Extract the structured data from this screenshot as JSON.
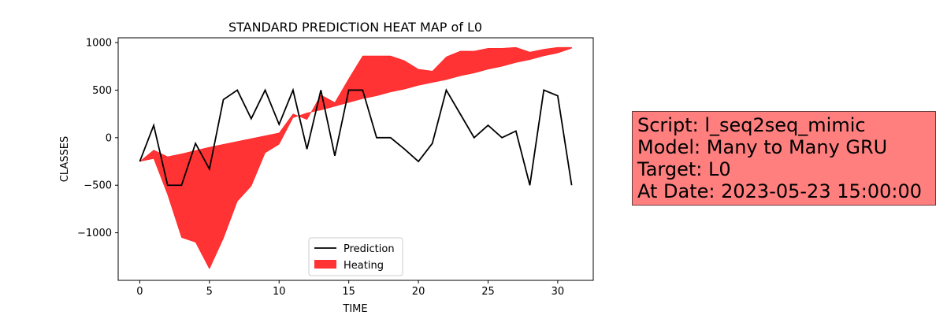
{
  "chart_data": {
    "type": "line",
    "title": "STANDARD PREDICTION HEAT MAP of L0",
    "xlabel": "TIME",
    "ylabel": "CLASSES",
    "xlim": [
      -1.55,
      32.55
    ],
    "ylim": [
      -1500,
      1050
    ],
    "xticks": [
      0,
      5,
      10,
      15,
      20,
      25,
      30
    ],
    "yticks": [
      -1000,
      -500,
      0,
      500,
      1000
    ],
    "grid": false,
    "legend": "lower-center",
    "series": [
      {
        "name": "Prediction",
        "type": "line",
        "color": "#000000",
        "x": [
          0,
          1,
          2,
          3,
          4,
          5,
          6,
          7,
          8,
          9,
          10,
          11,
          12,
          13,
          14,
          15,
          16,
          17,
          18,
          19,
          20,
          21,
          22,
          23,
          24,
          25,
          26,
          27,
          28,
          29,
          30,
          31
        ],
        "y": [
          -250,
          130,
          -500,
          -500,
          -60,
          -330,
          400,
          500,
          200,
          500,
          140,
          500,
          -120,
          500,
          -190,
          500,
          500,
          0,
          0,
          -120,
          -250,
          -60,
          500,
          250,
          0,
          130,
          0,
          70,
          -500,
          500,
          440,
          -500
        ]
      },
      {
        "name": "Heating",
        "type": "area",
        "color": "#ff0000",
        "x": [
          0,
          1,
          2,
          3,
          4,
          5,
          6,
          7,
          8,
          9,
          10,
          11,
          12,
          13,
          14,
          15,
          16,
          17,
          18,
          19,
          20,
          21,
          22,
          23,
          24,
          25,
          26,
          27,
          28,
          29,
          30,
          31
        ],
        "y_upper": [
          -250,
          -130,
          -200,
          -170,
          -135,
          -100,
          -70,
          -40,
          -10,
          20,
          50,
          250,
          190,
          450,
          370,
          620,
          860,
          860,
          860,
          810,
          720,
          700,
          850,
          910,
          910,
          940,
          940,
          950,
          900,
          930,
          950,
          950
        ],
        "y_lower": [
          -250,
          -220,
          -600,
          -1050,
          -1100,
          -1380,
          -1060,
          -670,
          -510,
          -160,
          -70,
          210,
          260,
          290,
          330,
          370,
          410,
          440,
          480,
          510,
          550,
          580,
          610,
          650,
          680,
          720,
          750,
          790,
          820,
          860,
          890,
          940
        ]
      }
    ]
  },
  "info_box": {
    "background": "#ff7f7f",
    "lines": [
      "Script: l_seq2seq_mimic",
      "Model: Many to Many GRU",
      "Target: L0",
      "At Date: 2023-05-23 15:00:00"
    ]
  }
}
